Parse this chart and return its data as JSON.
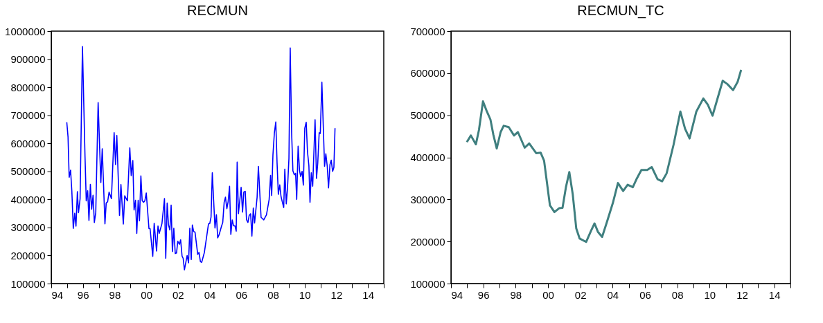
{
  "chart_data": [
    {
      "type": "line",
      "title": "RECMUN",
      "xlim": [
        1994,
        2015
      ],
      "ylim": [
        100000,
        1000000
      ],
      "xticks": [
        {
          "value": 1994,
          "label": "94"
        },
        {
          "value": 1995,
          "label": null
        },
        {
          "value": 1996,
          "label": "96"
        },
        {
          "value": 1997,
          "label": null
        },
        {
          "value": 1998,
          "label": "98"
        },
        {
          "value": 1999,
          "label": null
        },
        {
          "value": 2000,
          "label": "00"
        },
        {
          "value": 2001,
          "label": null
        },
        {
          "value": 2002,
          "label": "02"
        },
        {
          "value": 2003,
          "label": null
        },
        {
          "value": 2004,
          "label": "04"
        },
        {
          "value": 2005,
          "label": null
        },
        {
          "value": 2006,
          "label": "06"
        },
        {
          "value": 2007,
          "label": null
        },
        {
          "value": 2008,
          "label": "08"
        },
        {
          "value": 2009,
          "label": null
        },
        {
          "value": 2010,
          "label": "10"
        },
        {
          "value": 2011,
          "label": null
        },
        {
          "value": 2012,
          "label": "12"
        },
        {
          "value": 2013,
          "label": null
        },
        {
          "value": 2014,
          "label": "14"
        },
        {
          "value": 2015,
          "label": null
        }
      ],
      "yticks": [
        100000,
        200000,
        300000,
        400000,
        500000,
        600000,
        700000,
        800000,
        900000,
        1000000
      ],
      "grid": false,
      "x": [
        1994.98,
        1995.06,
        1995.13,
        1995.22,
        1995.3,
        1995.39,
        1995.48,
        1995.56,
        1995.65,
        1995.72,
        1995.82,
        1995.97,
        1996.13,
        1996.21,
        1996.3,
        1996.38,
        1996.47,
        1996.55,
        1996.64,
        1996.72,
        1996.81,
        1996.96,
        1997.13,
        1997.22,
        1997.39,
        1997.47,
        1997.56,
        1997.65,
        1997.8,
        1997.97,
        1998.06,
        1998.14,
        1998.31,
        1998.4,
        1998.55,
        1998.64,
        1998.81,
        1998.96,
        1999.05,
        1999.15,
        1999.23,
        1999.32,
        1999.4,
        1999.49,
        1999.57,
        1999.66,
        1999.74,
        1999.83,
        1999.91,
        2000.0,
        2000.17,
        2000.24,
        2000.41,
        2000.5,
        2000.65,
        2000.74,
        2000.82,
        2000.99,
        2001.15,
        2001.23,
        2001.32,
        2001.4,
        2001.49,
        2001.57,
        2001.65,
        2001.74,
        2001.83,
        2001.91,
        2001.99,
        2002.09,
        2002.17,
        2002.26,
        2002.33,
        2002.41,
        2002.58,
        2002.67,
        2002.75,
        2002.84,
        2002.91,
        2002.99,
        2003.08,
        2003.25,
        2003.33,
        2003.42,
        2003.5,
        2003.67,
        2003.93,
        2004.01,
        2004.09,
        2004.17,
        2004.34,
        2004.43,
        2004.51,
        2004.6,
        2004.74,
        2004.83,
        2004.92,
        2005.0,
        2005.09,
        2005.17,
        2005.26,
        2005.34,
        2005.43,
        2005.51,
        2005.6,
        2005.68,
        2005.74,
        2005.82,
        2005.99,
        2006.08,
        2006.16,
        2006.25,
        2006.33,
        2006.42,
        2006.5,
        2006.59,
        2006.67,
        2006.76,
        2006.84,
        2007.0,
        2007.08,
        2007.25,
        2007.42,
        2007.59,
        2007.76,
        2007.85,
        2007.92,
        2008.0,
        2008.09,
        2008.18,
        2008.26,
        2008.34,
        2008.43,
        2008.51,
        2008.68,
        2008.75,
        2008.84,
        2008.92,
        2009.01,
        2009.09,
        2009.18,
        2009.26,
        2009.35,
        2009.43,
        2009.5,
        2009.59,
        2009.68,
        2009.75,
        2009.84,
        2009.92,
        2010.01,
        2010.1,
        2010.18,
        2010.27,
        2010.34,
        2010.42,
        2010.51,
        2010.66,
        2010.75,
        2010.83,
        2010.92,
        2010.99,
        2011.09,
        2011.26,
        2011.34,
        2011.43,
        2011.51,
        2011.6,
        2011.68,
        2011.77,
        2011.85,
        2011.92
      ],
      "series": [
        {
          "color": "#0000ff",
          "values": [
            675000,
            622000,
            479000,
            504000,
            429000,
            297000,
            351000,
            305000,
            428000,
            353000,
            402000,
            945000,
            555000,
            395000,
            431000,
            325000,
            454000,
            365000,
            415000,
            318000,
            353000,
            745000,
            460000,
            581000,
            313000,
            387000,
            392000,
            426000,
            403000,
            638000,
            524000,
            628000,
            343000,
            453000,
            312000,
            413000,
            395000,
            584000,
            485000,
            539000,
            362000,
            397000,
            279000,
            397000,
            324000,
            484000,
            396000,
            390000,
            395000,
            423000,
            296000,
            296000,
            197000,
            315000,
            216000,
            305000,
            279000,
            314000,
            403000,
            190000,
            387000,
            310000,
            291000,
            380000,
            214000,
            297000,
            207000,
            209000,
            251000,
            240000,
            256000,
            198000,
            190000,
            149000,
            200000,
            174000,
            297000,
            186000,
            309000,
            286000,
            283000,
            204000,
            211000,
            178000,
            176000,
            211000,
            313000,
            314000,
            337000,
            495000,
            298000,
            345000,
            263000,
            274000,
            302000,
            318000,
            390000,
            408000,
            367000,
            392000,
            447000,
            275000,
            327000,
            306000,
            306000,
            287000,
            533000,
            349000,
            443000,
            355000,
            426000,
            429000,
            328000,
            318000,
            343000,
            349000,
            269000,
            369000,
            316000,
            408000,
            518000,
            336000,
            327000,
            345000,
            400000,
            486000,
            414000,
            559000,
            637000,
            676000,
            530000,
            418000,
            452000,
            410000,
            371000,
            508000,
            384000,
            441000,
            546000,
            940000,
            637000,
            502000,
            488000,
            493000,
            400000,
            590000,
            502000,
            482000,
            500000,
            451000,
            654000,
            675000,
            571000,
            520000,
            390000,
            495000,
            447000,
            684000,
            475000,
            530000,
            638000,
            635000,
            818000,
            518000,
            563000,
            518000,
            441000,
            524000,
            540000,
            500000,
            514000,
            654000
          ]
        }
      ]
    },
    {
      "type": "line",
      "title": "RECMUN_TC",
      "xlim": [
        1994,
        2015
      ],
      "ylim": [
        100000,
        700000
      ],
      "xticks": [
        {
          "value": 1994,
          "label": "94"
        },
        {
          "value": 1995,
          "label": null
        },
        {
          "value": 1996,
          "label": "96"
        },
        {
          "value": 1997,
          "label": null
        },
        {
          "value": 1998,
          "label": "98"
        },
        {
          "value": 1999,
          "label": null
        },
        {
          "value": 2000,
          "label": "00"
        },
        {
          "value": 2001,
          "label": null
        },
        {
          "value": 2002,
          "label": "02"
        },
        {
          "value": 2003,
          "label": null
        },
        {
          "value": 2004,
          "label": "04"
        },
        {
          "value": 2005,
          "label": null
        },
        {
          "value": 2006,
          "label": "06"
        },
        {
          "value": 2007,
          "label": null
        },
        {
          "value": 2008,
          "label": "08"
        },
        {
          "value": 2009,
          "label": null
        },
        {
          "value": 2010,
          "label": "10"
        },
        {
          "value": 2011,
          "label": null
        },
        {
          "value": 2012,
          "label": "12"
        },
        {
          "value": 2013,
          "label": null
        },
        {
          "value": 2014,
          "label": "14"
        },
        {
          "value": 2015,
          "label": null
        }
      ],
      "yticks": [
        100000,
        200000,
        300000,
        400000,
        500000,
        600000,
        700000
      ],
      "grid": false,
      "x": [
        1994.98,
        1995.23,
        1995.54,
        1995.73,
        1995.98,
        1996.22,
        1996.44,
        1996.62,
        1996.83,
        1997.07,
        1997.26,
        1997.57,
        1997.9,
        1998.14,
        1998.56,
        1998.84,
        1999.27,
        1999.55,
        1999.76,
        2000.12,
        2000.4,
        2000.69,
        2000.9,
        2001.11,
        2001.32,
        2001.53,
        2001.75,
        2001.96,
        2002.36,
        2002.67,
        2002.88,
        2003.09,
        2003.35,
        2003.66,
        2004.01,
        2004.33,
        2004.65,
        2004.93,
        2005.25,
        2005.5,
        2005.78,
        2006.14,
        2006.42,
        2006.78,
        2007.06,
        2007.34,
        2007.77,
        2008.19,
        2008.48,
        2008.76,
        2009.18,
        2009.61,
        2009.89,
        2010.18,
        2010.46,
        2010.81,
        2011.1,
        2011.45,
        2011.73,
        2011.95
      ],
      "series": [
        {
          "color": "#3f7f7f",
          "values": [
            436000,
            452000,
            431000,
            465000,
            533000,
            509000,
            490000,
            454000,
            421000,
            460000,
            475000,
            472000,
            452000,
            460000,
            423000,
            433000,
            410000,
            411000,
            392000,
            286000,
            270000,
            279000,
            280000,
            329000,
            365000,
            313000,
            231000,
            207000,
            199000,
            226000,
            243000,
            223000,
            211000,
            248000,
            291000,
            339000,
            320000,
            335000,
            329000,
            350000,
            370000,
            370000,
            377000,
            348000,
            343000,
            362000,
            430000,
            509000,
            468000,
            445000,
            509000,
            540000,
            525000,
            499000,
            536000,
            582000,
            574000,
            560000,
            579000,
            608000
          ]
        }
      ]
    }
  ]
}
